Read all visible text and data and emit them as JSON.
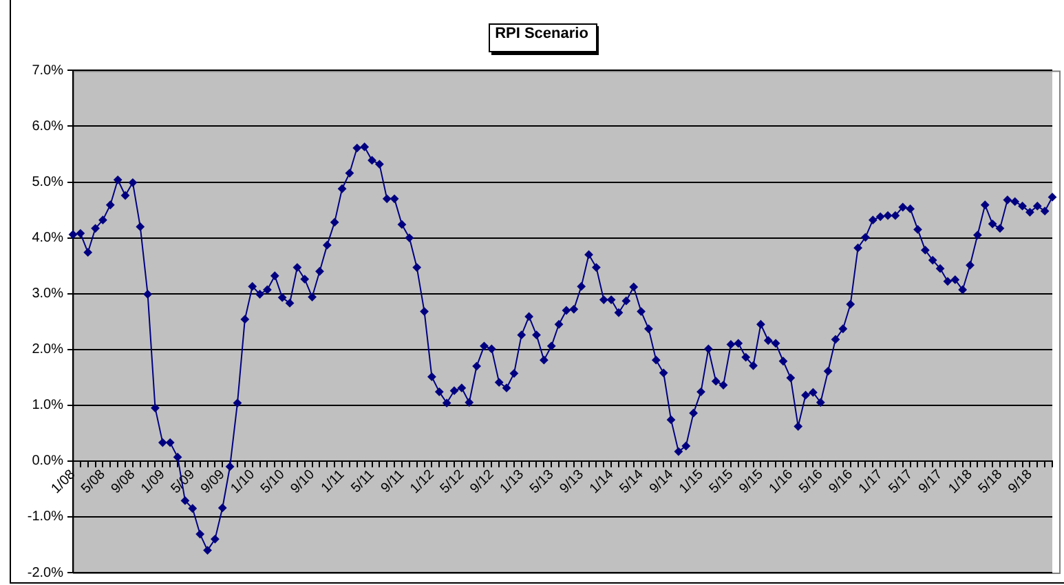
{
  "chart_data": {
    "type": "line",
    "title": "RPI Scenario",
    "categories": [
      "1/08",
      null,
      null,
      null,
      "5/08",
      null,
      null,
      null,
      "9/08",
      null,
      null,
      null,
      "1/09",
      null,
      null,
      null,
      "5/09",
      null,
      null,
      null,
      "9/09",
      null,
      null,
      null,
      "1/10",
      null,
      null,
      null,
      "5/10",
      null,
      null,
      null,
      "9/10",
      null,
      null,
      null,
      "1/11",
      null,
      null,
      null,
      "5/11",
      null,
      null,
      null,
      "9/11",
      null,
      null,
      null,
      "1/12",
      null,
      null,
      null,
      "5/12",
      null,
      null,
      null,
      "9/12",
      null,
      null,
      null,
      "1/13",
      null,
      null,
      null,
      "5/13",
      null,
      null,
      null,
      "9/13",
      null,
      null,
      null,
      "1/14",
      null,
      null,
      null,
      "5/14",
      null,
      null,
      null,
      "9/14",
      null,
      null,
      null,
      "1/15",
      null,
      null,
      null,
      "5/15",
      null,
      null,
      null,
      "9/15",
      null,
      null,
      null,
      "1/16",
      null,
      null,
      null,
      "5/16",
      null,
      null,
      null,
      "9/16",
      null,
      null,
      null,
      "1/17",
      null,
      null,
      null,
      "5/17",
      null,
      null,
      null,
      "9/17",
      null,
      null,
      null,
      "1/18",
      null,
      null,
      null,
      "5/18",
      null,
      null,
      null,
      "9/18",
      null,
      null,
      null
    ],
    "series": [
      {
        "color": "#000080",
        "values": [
          4.06,
          4.08,
          3.74,
          4.17,
          4.32,
          4.59,
          5.04,
          4.76,
          4.99,
          4.2,
          2.99,
          0.95,
          0.33,
          0.33,
          0.07,
          -0.71,
          -0.85,
          -1.31,
          -1.6,
          -1.4,
          -0.84,
          -0.1,
          1.04,
          2.54,
          3.13,
          2.99,
          3.07,
          3.32,
          2.93,
          2.83,
          3.47,
          3.26,
          2.94,
          3.4,
          3.87,
          4.28,
          4.88,
          5.16,
          5.61,
          5.63,
          5.39,
          5.32,
          4.7,
          4.7,
          4.24,
          4.0,
          3.47,
          2.68,
          1.51,
          1.24,
          1.04,
          1.26,
          1.31,
          1.05,
          1.7,
          2.06,
          2.01,
          1.41,
          1.31,
          1.57,
          2.26,
          2.59,
          2.26,
          1.81,
          2.06,
          2.45,
          2.7,
          2.72,
          3.13,
          3.7,
          3.47,
          2.89,
          2.89,
          2.66,
          2.87,
          3.12,
          2.68,
          2.37,
          1.81,
          1.58,
          0.74,
          0.17,
          0.27,
          0.86,
          1.24,
          2.01,
          1.43,
          1.36,
          2.09,
          2.11,
          1.86,
          1.71,
          2.45,
          2.16,
          2.11,
          1.79,
          1.49,
          0.62,
          1.18,
          1.23,
          1.05,
          1.61,
          2.18,
          2.37,
          2.81,
          3.82,
          4.01,
          4.32,
          4.38,
          4.4,
          4.4,
          4.55,
          4.52,
          4.15,
          3.78,
          3.6,
          3.45,
          3.22,
          3.25,
          3.07,
          3.51,
          4.05,
          4.59,
          4.25,
          4.17,
          4.68,
          4.65,
          4.57,
          4.46,
          4.57,
          4.48,
          4.73
        ]
      }
    ],
    "ylim": [
      -2,
      7
    ],
    "yticks": [
      {
        "value": -2,
        "label": "-2.0%"
      },
      {
        "value": -1,
        "label": "-1.0%"
      },
      {
        "value": 0,
        "label": "0.0%"
      },
      {
        "value": 1,
        "label": "1.0%"
      },
      {
        "value": 2,
        "label": "2.0%"
      },
      {
        "value": 3,
        "label": "3.0%"
      },
      {
        "value": 4,
        "label": "4.0%"
      },
      {
        "value": 5,
        "label": "5.0%"
      },
      {
        "value": 6,
        "label": "6.0%"
      },
      {
        "value": 7,
        "label": "7.0%"
      }
    ],
    "grid": "y",
    "legend": false,
    "marker": "diamond",
    "line_style": "solid"
  }
}
